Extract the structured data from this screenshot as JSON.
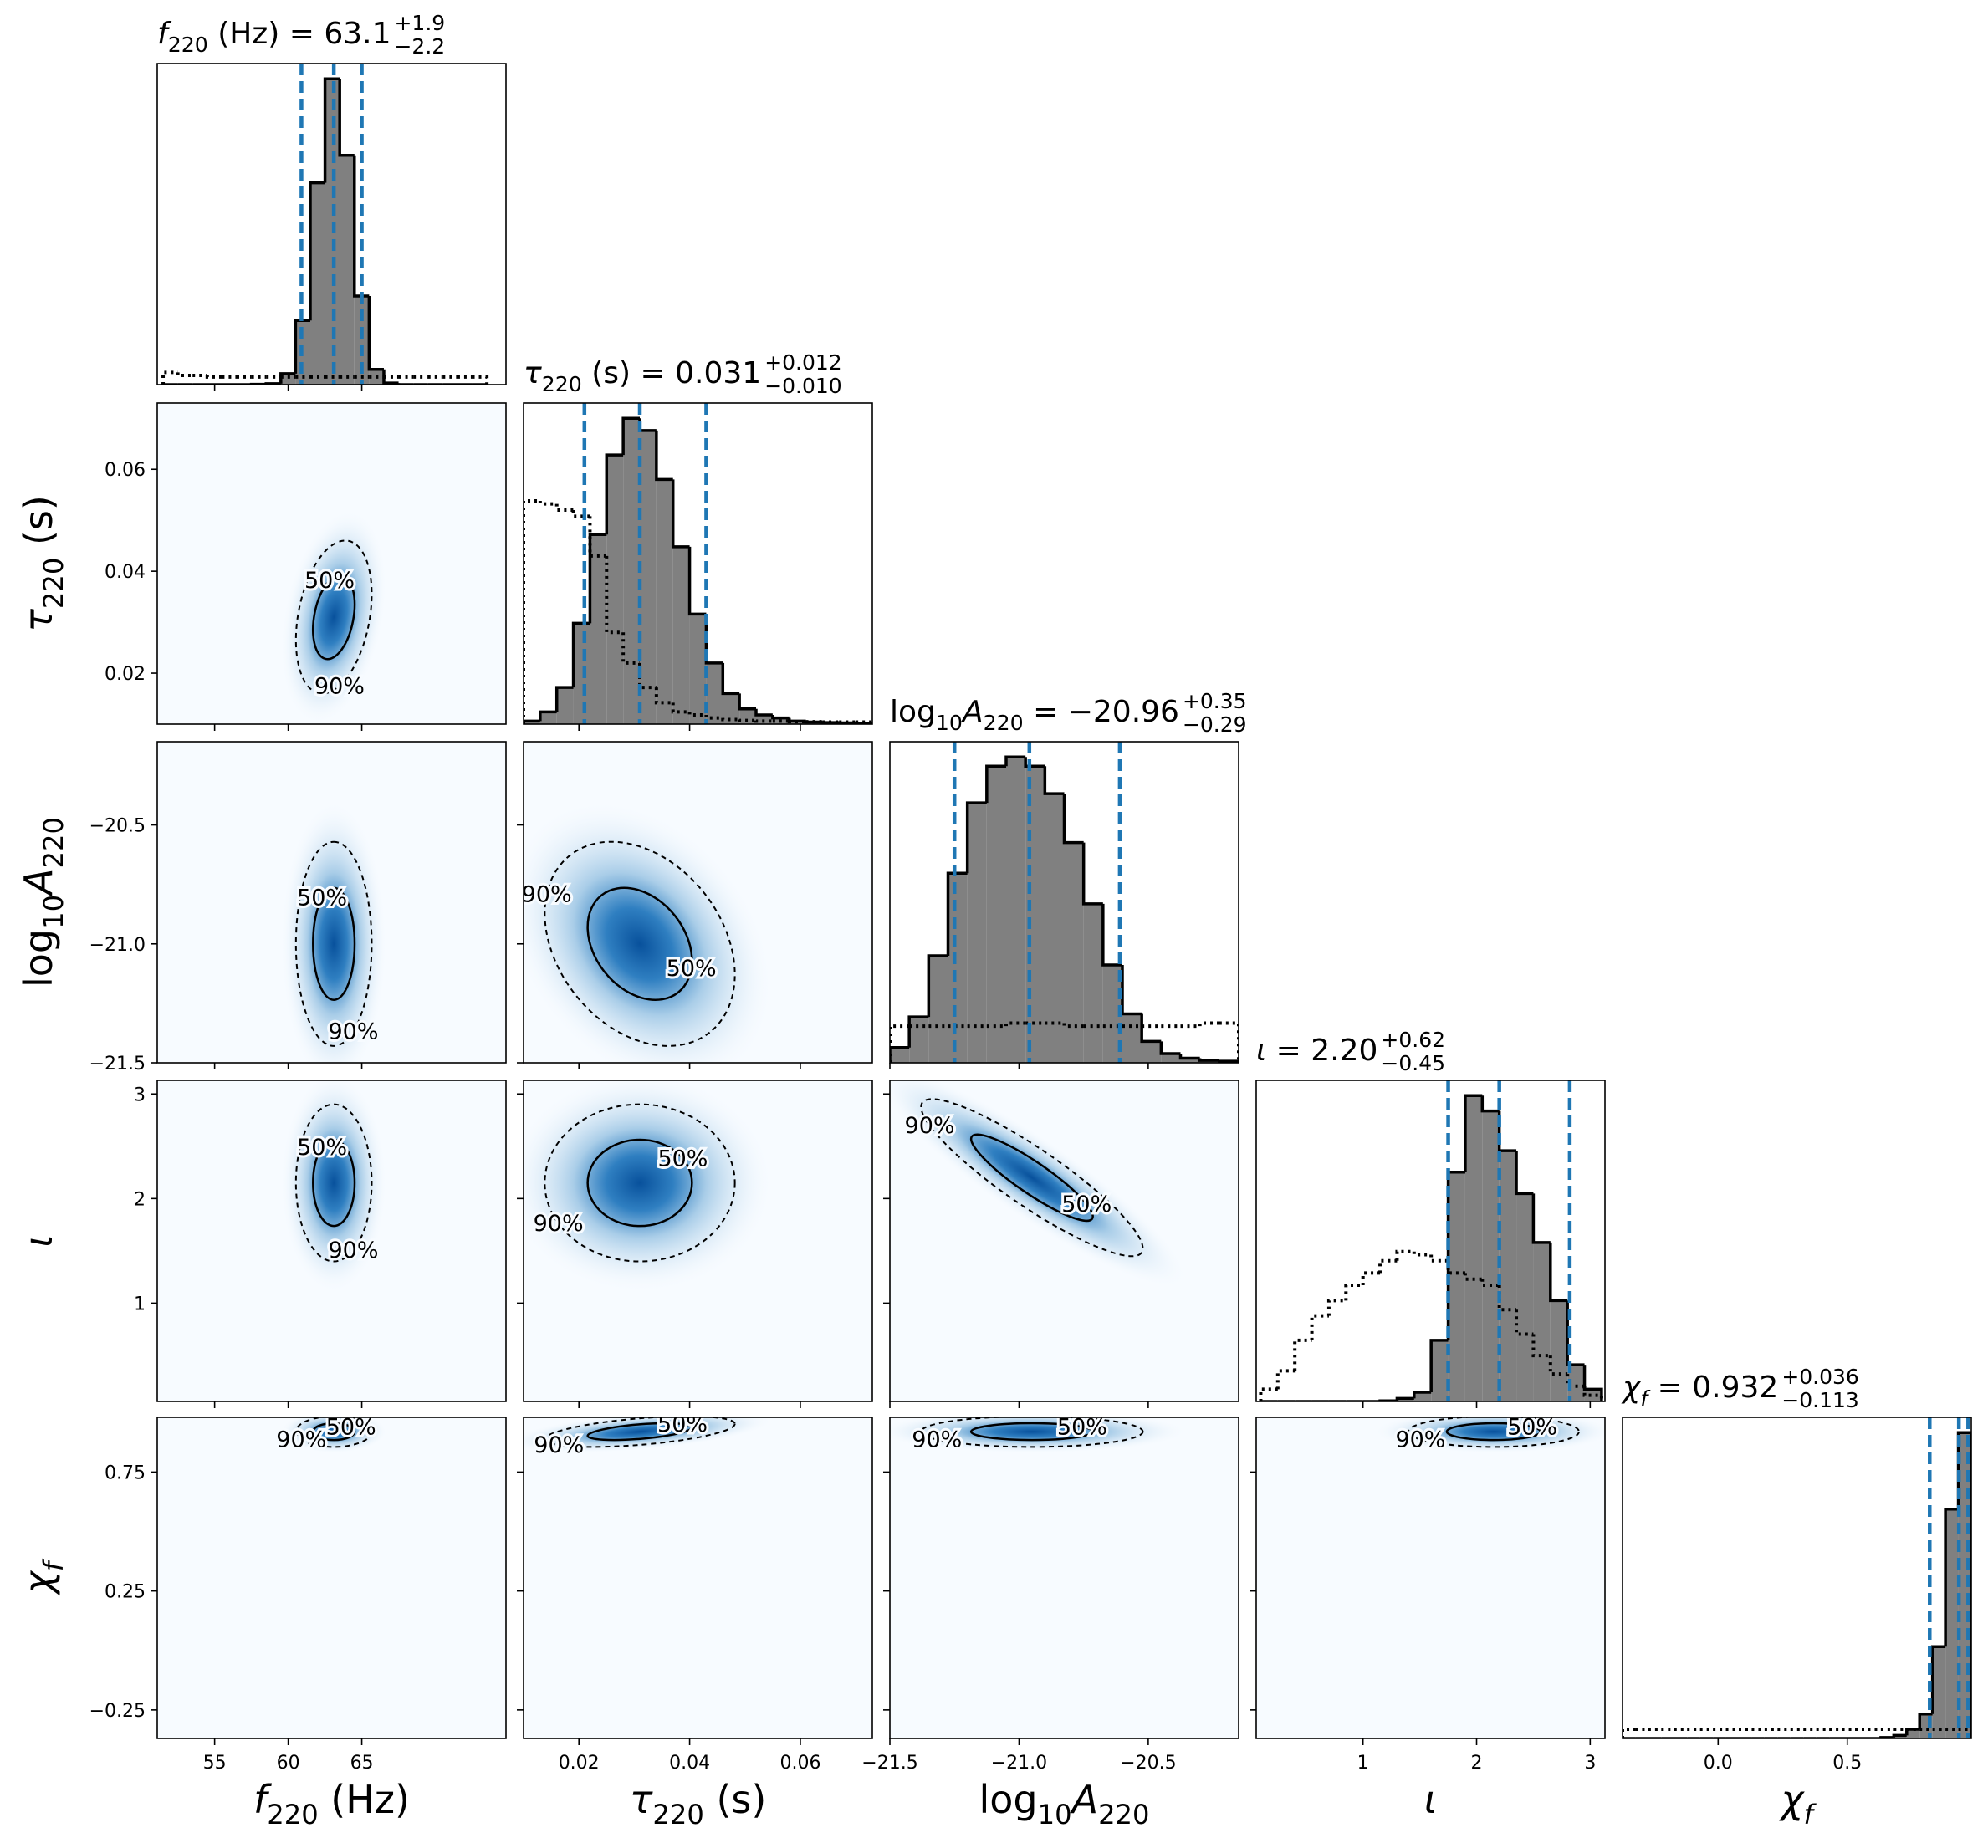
{
  "chart_data": {
    "type": "corner",
    "colors": {
      "hist": "#808080",
      "quantile": "#1f77b4",
      "background": "#f7fbff"
    },
    "contour_labels": [
      "50%",
      "90%"
    ],
    "parameters": [
      {
        "label": [
          {
            "text": "f",
            "italic": true
          },
          {
            "text": "220",
            "sub": true
          },
          {
            "text": " (Hz)"
          }
        ],
        "title_suffix": " = 63.1",
        "err_plus": "+1.9",
        "err_minus": "−2.2",
        "lim": [
          51.1,
          74.8
        ],
        "xticks": [
          55,
          60,
          65
        ],
        "quantiles": [
          60.9,
          63.1,
          65.0
        ],
        "bins": [
          51.5,
          52.5,
          53.5,
          54.5,
          55.5,
          56.5,
          57.5,
          58.5,
          59.5,
          60.5,
          61.5,
          62.5,
          63.5,
          64.5,
          65.5,
          66.5,
          67.5,
          68.5,
          69.5,
          70.5,
          71.5,
          72.5,
          73.5
        ],
        "counts": [
          0,
          0,
          0,
          0,
          0,
          0,
          0.1,
          0.3,
          3.6,
          21,
          66,
          100,
          75,
          29,
          5,
          0.5,
          0,
          0,
          0,
          0,
          0,
          0
        ],
        "prior": [
          4,
          3,
          3,
          2.5,
          2.5,
          2.5,
          2.5,
          2.5,
          2.5,
          2.5,
          2.5,
          2.5,
          2.5,
          2.5,
          2.5,
          2.5,
          2.5,
          2.5,
          2.5,
          2.5,
          2.5,
          2.5
        ]
      },
      {
        "label": [
          {
            "text": "τ",
            "italic": true
          },
          {
            "text": "220",
            "sub": true
          },
          {
            "text": " (s)"
          }
        ],
        "title_suffix": " = 0.031",
        "err_plus": "+0.012",
        "err_minus": "−0.010",
        "lim": [
          0.01,
          0.073
        ],
        "xticks": [
          0.02,
          0.04,
          0.06
        ],
        "yticks": [
          0.02,
          0.04,
          0.06
        ],
        "quantiles": [
          0.021,
          0.031,
          0.043
        ],
        "bins": [
          0.01,
          0.013,
          0.016,
          0.019,
          0.022,
          0.025,
          0.028,
          0.031,
          0.034,
          0.037,
          0.04,
          0.043,
          0.046,
          0.049,
          0.052,
          0.055,
          0.058,
          0.061,
          0.064,
          0.067,
          0.07,
          0.073
        ],
        "counts": [
          1,
          4,
          12,
          33,
          62,
          88,
          100,
          96,
          80,
          58,
          36,
          20,
          10,
          5,
          3,
          2,
          1,
          0.7,
          0.5,
          0.4,
          0.3
        ],
        "prior": [
          73,
          72,
          70,
          68,
          55,
          30,
          20,
          12,
          7,
          4,
          3,
          2,
          1.5,
          1.2,
          1,
          1,
          0.8,
          0.8,
          0.7,
          0.7,
          0.7
        ]
      },
      {
        "label": [
          {
            "text": "log"
          },
          {
            "text": "10",
            "sub": true
          },
          {
            "text": "A",
            "italic": true
          },
          {
            "text": "220",
            "sub": true
          }
        ],
        "title_suffix": " = −20.96",
        "err_plus": "+0.35",
        "err_minus": "−0.29",
        "lim": [
          -21.5,
          -20.15
        ],
        "xticks": [
          {
            "value": -21.5,
            "label": "−21.5"
          },
          {
            "value": -21.0,
            "label": "−21.0"
          },
          {
            "value": -20.5,
            "label": "−20.5"
          }
        ],
        "yticks": [
          {
            "value": -20.5,
            "label": "−20.5"
          },
          {
            "value": -21.0,
            "label": "−21.0"
          },
          {
            "value": -21.5,
            "label": "−21.5"
          }
        ],
        "quantiles": [
          -21.25,
          -20.96,
          -20.61
        ],
        "bins": [
          -21.5,
          -21.425,
          -21.35,
          -21.275,
          -21.2,
          -21.125,
          -21.05,
          -20.975,
          -20.9,
          -20.825,
          -20.75,
          -20.675,
          -20.6,
          -20.525,
          -20.45,
          -20.375,
          -20.3,
          -20.225,
          -20.15
        ],
        "counts": [
          5,
          15,
          35,
          62,
          85,
          97,
          100,
          97,
          88,
          72,
          52,
          32,
          16,
          7,
          3,
          1.5,
          0.8,
          0.5
        ],
        "prior": [
          12,
          12,
          12,
          12,
          12,
          12,
          13,
          13,
          13,
          12,
          12,
          12,
          12,
          12,
          12,
          12,
          13,
          13
        ]
      },
      {
        "label": [
          {
            "text": "ι",
            "italic": true
          }
        ],
        "title_suffix": " = 2.20",
        "err_plus": "+0.62",
        "err_minus": "−0.45",
        "lim": [
          0.06,
          3.13
        ],
        "xticks": [
          1,
          2,
          3
        ],
        "yticks": [
          1,
          2,
          3
        ],
        "quantiles": [
          1.75,
          2.2,
          2.82
        ],
        "bins": [
          0.1,
          0.25,
          0.4,
          0.55,
          0.7,
          0.85,
          1.0,
          1.15,
          1.3,
          1.45,
          1.6,
          1.75,
          1.9,
          2.05,
          2.2,
          2.35,
          2.5,
          2.65,
          2.8,
          2.95,
          3.1
        ],
        "counts": [
          0,
          0,
          0,
          0,
          0,
          0,
          0,
          0.2,
          1,
          3,
          20,
          75,
          100,
          95,
          82,
          68,
          52,
          33,
          12,
          4
        ],
        "prior": [
          4,
          10,
          20,
          28,
          33,
          38,
          42,
          46,
          49,
          48,
          46,
          42,
          40,
          38,
          30,
          22,
          15,
          9,
          5,
          2
        ]
      },
      {
        "label": [
          {
            "text": "χ",
            "italic": true
          },
          {
            "text": "f",
            "sub": true,
            "italic": true
          }
        ],
        "title_suffix": " = 0.932",
        "err_plus": "+0.036",
        "err_minus": "−0.113",
        "lim": [
          -0.37,
          0.98
        ],
        "xticks": [
          {
            "value": 0,
            "label": "0.0"
          },
          0.5
        ],
        "yticks": [
          0.75,
          0.25,
          {
            "value": -0.25,
            "label": "−0.25"
          }
        ],
        "quantiles": [
          0.819,
          0.932,
          0.968
        ],
        "bins": [
          -0.37,
          -0.32,
          -0.27,
          -0.22,
          -0.17,
          -0.12,
          -0.07,
          -0.02,
          0.03,
          0.08,
          0.13,
          0.18,
          0.23,
          0.28,
          0.33,
          0.38,
          0.43,
          0.48,
          0.53,
          0.58,
          0.63,
          0.68,
          0.73,
          0.78,
          0.83,
          0.88,
          0.93,
          0.98
        ],
        "counts": [
          0,
          0,
          0,
          0,
          0,
          0,
          0,
          0,
          0,
          0,
          0,
          0,
          0,
          0,
          0,
          0,
          0,
          0,
          0,
          0,
          0.3,
          1,
          3,
          8,
          30,
          75,
          100
        ],
        "prior": [
          3,
          3,
          3,
          3,
          3,
          3,
          3,
          3,
          3,
          3,
          3,
          3,
          3,
          3,
          3,
          3,
          3,
          3,
          3,
          3,
          3,
          3,
          3,
          3,
          3,
          3,
          3
        ]
      }
    ],
    "density": [
      {
        "x": 0,
        "y": 1,
        "mean": [
          63.1,
          0.031
        ],
        "sd": [
          1.2,
          0.007
        ],
        "corr": 0.3
      },
      {
        "x": 0,
        "y": 2,
        "mean": [
          63.1,
          -21.0
        ],
        "sd": [
          1.2,
          0.2
        ],
        "corr": 0
      },
      {
        "x": 1,
        "y": 2,
        "mean": [
          0.031,
          -21.0
        ],
        "sd": [
          0.008,
          0.2
        ],
        "corr": -0.3
      },
      {
        "x": 0,
        "y": 3,
        "mean": [
          63.1,
          2.15
        ],
        "sd": [
          1.2,
          0.35
        ],
        "corr": 0
      },
      {
        "x": 1,
        "y": 3,
        "mean": [
          0.031,
          2.15
        ],
        "sd": [
          0.008,
          0.35
        ],
        "corr": 0
      },
      {
        "x": 2,
        "y": 3,
        "mean": [
          -20.95,
          2.2
        ],
        "sd": [
          0.2,
          0.35
        ],
        "corr": -0.9
      },
      {
        "x": 0,
        "y": 4,
        "mean": [
          63.1,
          0.92
        ],
        "sd": [
          1.2,
          0.03
        ],
        "corr": 0
      },
      {
        "x": 1,
        "y": 4,
        "mean": [
          0.031,
          0.92
        ],
        "sd": [
          0.008,
          0.03
        ],
        "corr": 0.5
      },
      {
        "x": 2,
        "y": 4,
        "mean": [
          -20.95,
          0.92
        ],
        "sd": [
          0.2,
          0.03
        ],
        "corr": 0
      },
      {
        "x": 3,
        "y": 4,
        "mean": [
          2.15,
          0.92
        ],
        "sd": [
          0.35,
          0.03
        ],
        "corr": 0
      }
    ]
  }
}
